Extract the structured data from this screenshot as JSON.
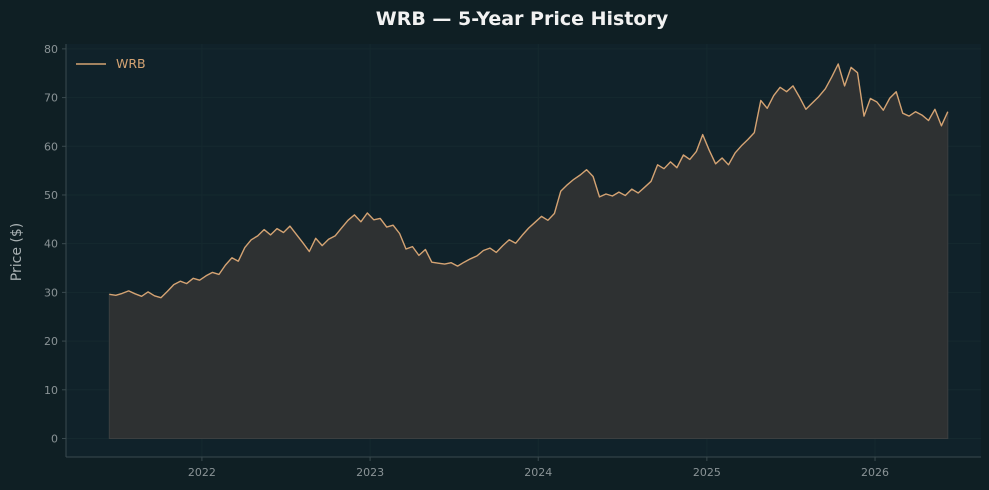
{
  "colors": {
    "background": "#0f1f24",
    "plot_background": "#10222a",
    "line": "#d4a373",
    "fill": "#2e3132",
    "axis": "#3a4a4f",
    "tick_text": "#8a9396",
    "title_text": "#f2f2f2",
    "label_text": "#a8b0b2",
    "grid": "#15292f"
  },
  "chart_data": {
    "type": "area",
    "title": "WRB — 5-Year Price History",
    "xlabel": "",
    "ylabel": "Price ($)",
    "ylim": [
      -3.8,
      81
    ],
    "xlim": [
      "2021-03-12",
      "2026-08-19"
    ],
    "grid": true,
    "legend_placement": "top-left",
    "y_ticks": [
      0,
      10,
      20,
      30,
      40,
      50,
      60,
      70,
      80
    ],
    "x_ticks": [
      "2022",
      "2023",
      "2024",
      "2025",
      "2026"
    ],
    "series": [
      {
        "name": "WRB",
        "points": [
          [
            "2021-06-14",
            29.6
          ],
          [
            "2021-06-28",
            29.4
          ],
          [
            "2021-07-12",
            29.8
          ],
          [
            "2021-07-26",
            30.3
          ],
          [
            "2021-08-09",
            29.7
          ],
          [
            "2021-08-23",
            29.2
          ],
          [
            "2021-09-06",
            30.1
          ],
          [
            "2021-09-20",
            29.3
          ],
          [
            "2021-10-04",
            28.9
          ],
          [
            "2021-10-18",
            30.2
          ],
          [
            "2021-11-01",
            31.6
          ],
          [
            "2021-11-15",
            32.3
          ],
          [
            "2021-11-29",
            31.8
          ],
          [
            "2021-12-13",
            32.9
          ],
          [
            "2021-12-27",
            32.5
          ],
          [
            "2022-01-10",
            33.4
          ],
          [
            "2022-01-24",
            34.1
          ],
          [
            "2022-02-07",
            33.7
          ],
          [
            "2022-02-21",
            35.6
          ],
          [
            "2022-03-07",
            37.1
          ],
          [
            "2022-03-21",
            36.4
          ],
          [
            "2022-04-04",
            39.2
          ],
          [
            "2022-04-18",
            40.8
          ],
          [
            "2022-05-02",
            41.6
          ],
          [
            "2022-05-16",
            42.9
          ],
          [
            "2022-05-30",
            41.8
          ],
          [
            "2022-06-13",
            43.1
          ],
          [
            "2022-06-27",
            42.3
          ],
          [
            "2022-07-11",
            43.6
          ],
          [
            "2022-07-25",
            41.9
          ],
          [
            "2022-08-08",
            40.2
          ],
          [
            "2022-08-22",
            38.4
          ],
          [
            "2022-09-05",
            41.1
          ],
          [
            "2022-09-19",
            39.6
          ],
          [
            "2022-10-03",
            40.9
          ],
          [
            "2022-10-17",
            41.6
          ],
          [
            "2022-10-31",
            43.2
          ],
          [
            "2022-11-14",
            44.8
          ],
          [
            "2022-11-28",
            45.9
          ],
          [
            "2022-12-12",
            44.5
          ],
          [
            "2022-12-26",
            46.3
          ],
          [
            "2023-01-09",
            44.9
          ],
          [
            "2023-01-23",
            45.2
          ],
          [
            "2023-02-06",
            43.4
          ],
          [
            "2023-02-20",
            43.8
          ],
          [
            "2023-03-06",
            42.1
          ],
          [
            "2023-03-20",
            38.9
          ],
          [
            "2023-04-03",
            39.4
          ],
          [
            "2023-04-17",
            37.6
          ],
          [
            "2023-05-01",
            38.8
          ],
          [
            "2023-05-15",
            36.2
          ],
          [
            "2023-05-29",
            36.0
          ],
          [
            "2023-06-12",
            35.8
          ],
          [
            "2023-06-26",
            36.1
          ],
          [
            "2023-07-10",
            35.4
          ],
          [
            "2023-07-24",
            36.2
          ],
          [
            "2023-08-07",
            36.9
          ],
          [
            "2023-08-21",
            37.5
          ],
          [
            "2023-09-04",
            38.6
          ],
          [
            "2023-09-18",
            39.1
          ],
          [
            "2023-10-02",
            38.2
          ],
          [
            "2023-10-16",
            39.6
          ],
          [
            "2023-10-30",
            40.8
          ],
          [
            "2023-11-13",
            40.1
          ],
          [
            "2023-11-27",
            41.7
          ],
          [
            "2023-12-11",
            43.2
          ],
          [
            "2023-12-25",
            44.4
          ],
          [
            "2024-01-08",
            45.6
          ],
          [
            "2024-01-22",
            44.8
          ],
          [
            "2024-02-05",
            46.2
          ],
          [
            "2024-02-19",
            50.8
          ],
          [
            "2024-03-04",
            52.1
          ],
          [
            "2024-03-18",
            53.2
          ],
          [
            "2024-04-01",
            54.1
          ],
          [
            "2024-04-15",
            55.2
          ],
          [
            "2024-04-29",
            53.8
          ],
          [
            "2024-05-13",
            49.6
          ],
          [
            "2024-05-27",
            50.2
          ],
          [
            "2024-06-10",
            49.8
          ],
          [
            "2024-06-24",
            50.6
          ],
          [
            "2024-07-08",
            49.9
          ],
          [
            "2024-07-22",
            51.2
          ],
          [
            "2024-08-05",
            50.4
          ],
          [
            "2024-08-19",
            51.6
          ],
          [
            "2024-09-02",
            52.8
          ],
          [
            "2024-09-16",
            56.2
          ],
          [
            "2024-09-30",
            55.4
          ],
          [
            "2024-10-14",
            56.8
          ],
          [
            "2024-10-28",
            55.6
          ],
          [
            "2024-11-11",
            58.2
          ],
          [
            "2024-11-25",
            57.3
          ],
          [
            "2024-12-09",
            58.9
          ],
          [
            "2024-12-23",
            62.4
          ],
          [
            "2025-01-06",
            59.2
          ],
          [
            "2025-01-20",
            56.4
          ],
          [
            "2025-02-03",
            57.6
          ],
          [
            "2025-02-17",
            56.2
          ],
          [
            "2025-03-03",
            58.6
          ],
          [
            "2025-03-17",
            60.1
          ],
          [
            "2025-03-31",
            61.4
          ],
          [
            "2025-04-14",
            62.8
          ],
          [
            "2025-04-28",
            69.4
          ],
          [
            "2025-05-12",
            67.8
          ],
          [
            "2025-05-26",
            70.4
          ],
          [
            "2025-06-09",
            72.1
          ],
          [
            "2025-06-23",
            71.2
          ],
          [
            "2025-07-07",
            72.4
          ],
          [
            "2025-07-21",
            70.1
          ],
          [
            "2025-08-04",
            67.6
          ],
          [
            "2025-08-18",
            68.9
          ],
          [
            "2025-09-01",
            70.2
          ],
          [
            "2025-09-15",
            71.8
          ],
          [
            "2025-09-29",
            74.2
          ],
          [
            "2025-10-13",
            76.9
          ],
          [
            "2025-10-27",
            72.4
          ],
          [
            "2025-11-10",
            76.2
          ],
          [
            "2025-11-24",
            75.1
          ],
          [
            "2025-12-08",
            66.2
          ],
          [
            "2025-12-22",
            69.8
          ],
          [
            "2026-01-05",
            69.1
          ],
          [
            "2026-01-19",
            67.4
          ],
          [
            "2026-02-02",
            69.9
          ],
          [
            "2026-02-16",
            71.2
          ],
          [
            "2026-03-02",
            66.8
          ],
          [
            "2026-03-16",
            66.2
          ],
          [
            "2026-03-30",
            67.1
          ],
          [
            "2026-04-13",
            66.4
          ],
          [
            "2026-04-27",
            65.3
          ],
          [
            "2026-05-11",
            67.6
          ],
          [
            "2026-05-25",
            64.2
          ],
          [
            "2026-06-08",
            67.1
          ]
        ]
      }
    ]
  }
}
